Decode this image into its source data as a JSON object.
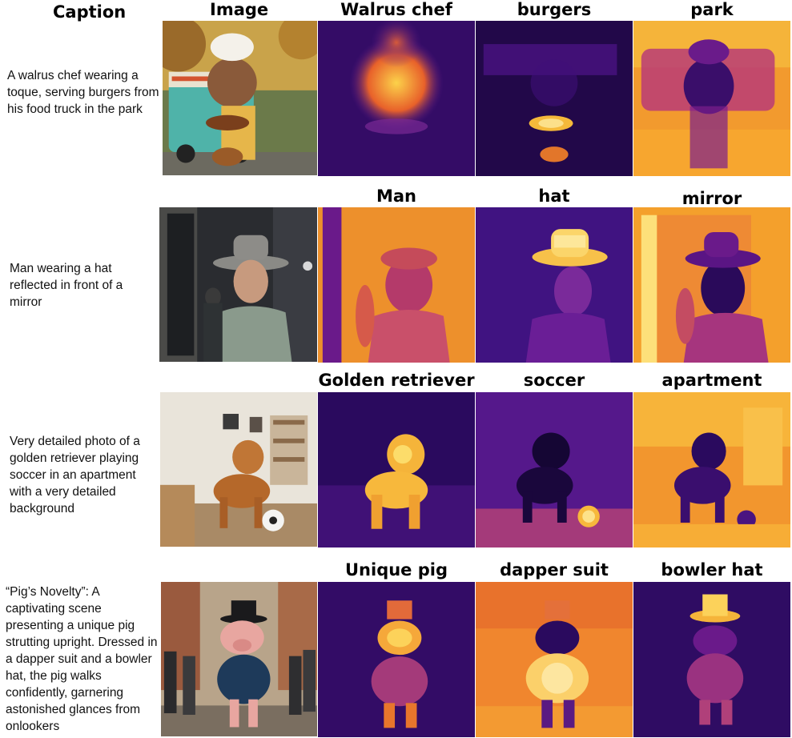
{
  "header": {
    "caption": "Caption",
    "image": "Image"
  },
  "rows": [
    {
      "caption": "A walrus chef wearing a toque, serving burgers from his food truck in the park",
      "labels": [
        "Walrus chef",
        "burgers",
        "park"
      ]
    },
    {
      "caption": "Man wearing a hat reflected in front of a mirror",
      "labels": [
        "Man",
        "hat",
        "mirror"
      ]
    },
    {
      "caption": "Very detailed photo of a golden retriever playing soccer in an apartment with a very detailed background",
      "labels": [
        "Golden retriever",
        "soccer",
        "apartment"
      ]
    },
    {
      "caption": "“Pig’s Novelty”: A captivating scene presenting a unique pig strutting upright. Dressed in a dapper suit and a bowler hat, the pig walks confidently, garnering astonished glances from onlookers",
      "labels": [
        "Unique pig",
        "dapper suit",
        "bowler hat"
      ]
    }
  ],
  "colormap": {
    "low": "#1b0c41",
    "mid": "#7a1e8c",
    "high": "#f5a623",
    "peak": "#fcffa4"
  }
}
